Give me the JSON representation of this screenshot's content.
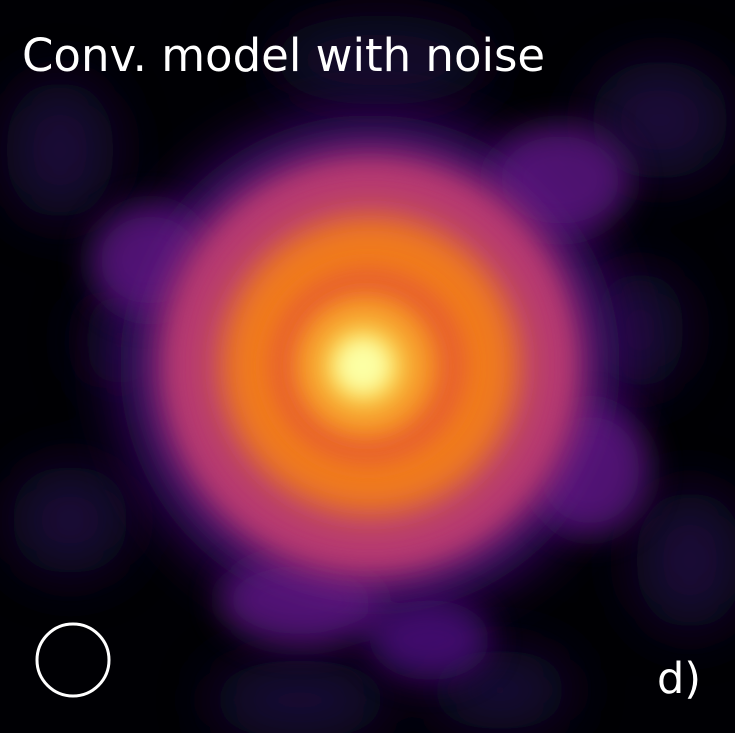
{
  "panel": {
    "title": "Conv. model with noise",
    "label": "d)"
  },
  "colors": {
    "background": "#000004",
    "noise": "#1a0a3c",
    "outer_halo": "#4a0c7a",
    "ring_magenta": "#b73a70",
    "ring_orange": "#f07a1f",
    "gap": "#d8536b",
    "core": "#fcffa4",
    "text": "#ffffff",
    "beam_outline": "#ffffff"
  },
  "icons": {
    "beam": "beam-ellipse-icon"
  }
}
